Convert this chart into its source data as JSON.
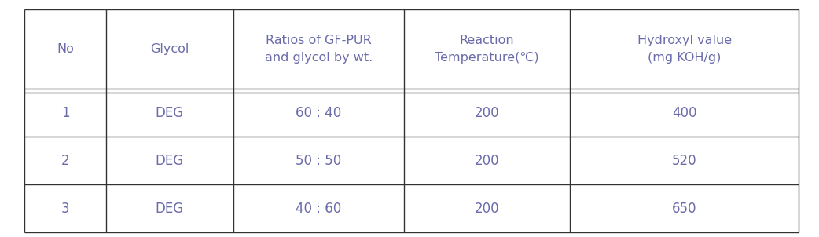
{
  "headers": [
    "No",
    "Glycol",
    "Ratios of GF-PUR\nand glycol by wt.",
    "Reaction\nTemperature(℃)",
    "Hydroxyl value\n(mg KOH/g)"
  ],
  "rows": [
    [
      "1",
      "DEG",
      "60 : 40",
      "200",
      "400"
    ],
    [
      "2",
      "DEG",
      "50 : 50",
      "200",
      "520"
    ],
    [
      "3",
      "DEG",
      "40 : 60",
      "200",
      "650"
    ]
  ],
  "text_color": "#6b6baa",
  "line_color": "#333333",
  "bg_color": "#ffffff",
  "header_fontsize": 11.5,
  "cell_fontsize": 12,
  "fig_width": 10.42,
  "fig_height": 3.02,
  "dpi": 100
}
